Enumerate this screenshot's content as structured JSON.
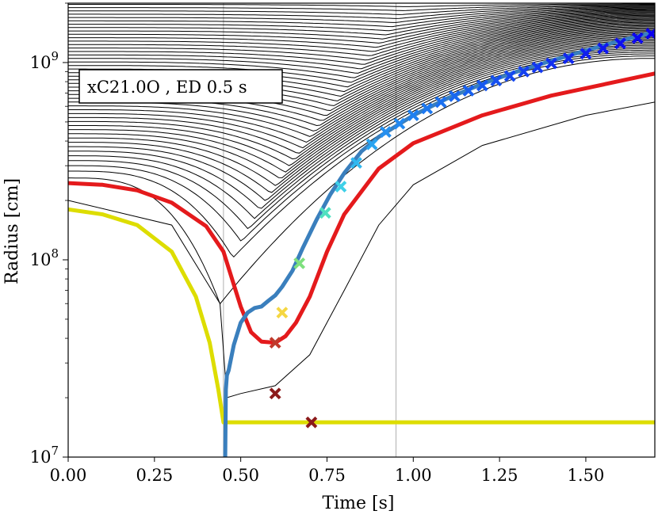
{
  "chart_data": {
    "type": "line",
    "annotation": "xC21.0O , ED 0.5 s",
    "xlabel": "Time [s]",
    "ylabel": "Radius [cm]",
    "xlim": [
      0.0,
      1.7
    ],
    "ylim": [
      10000000,
      2000000000
    ],
    "yscale": "log",
    "x_ticks": [
      0.0,
      0.25,
      0.5,
      0.75,
      1.0,
      1.25,
      1.5
    ],
    "x_tick_labels": [
      "0.00",
      "0.25",
      "0.50",
      "0.75",
      "1.00",
      "1.25",
      "1.50"
    ],
    "y_major_ticks": [
      {
        "value": 10000000,
        "base": "10",
        "exp": "7"
      },
      {
        "value": 100000000,
        "base": "10",
        "exp": "8"
      },
      {
        "value": 1000000000,
        "base": "10",
        "exp": "9"
      }
    ],
    "vlines": [
      0.45,
      0.95
    ],
    "colors": {
      "trajectories": "#000000",
      "yellow": "#dddd00",
      "red": "#e41a1c",
      "blue": "#3a7fbd",
      "vline": "#b0b0b0"
    },
    "series": [
      {
        "name": "inner-yellow",
        "color": "#dddd00",
        "x": [
          0.0,
          0.1,
          0.2,
          0.3,
          0.37,
          0.41,
          0.435,
          0.45,
          0.46,
          1.7
        ],
        "y": [
          180000000,
          170000000,
          150000000,
          110000000,
          65000000,
          38000000,
          22000000,
          15000000,
          15000000,
          15000000
        ]
      },
      {
        "name": "red-shell",
        "color": "#e41a1c",
        "x": [
          0.0,
          0.1,
          0.2,
          0.3,
          0.4,
          0.45,
          0.5,
          0.53,
          0.56,
          0.6,
          0.63,
          0.66,
          0.7,
          0.75,
          0.8,
          0.9,
          1.0,
          1.2,
          1.4,
          1.7
        ],
        "y": [
          245000000,
          240000000,
          225000000,
          195000000,
          148000000,
          110000000,
          58000000,
          43000000,
          38500000,
          38000000,
          41000000,
          48000000,
          65000000,
          110000000,
          170000000,
          290000000,
          390000000,
          540000000,
          680000000,
          880000000
        ]
      },
      {
        "name": "shock-radius",
        "color": "#3a7fbd",
        "x": [
          0.455,
          0.457,
          0.46,
          0.465,
          0.48,
          0.5,
          0.52,
          0.54,
          0.56,
          0.58,
          0.6,
          0.62,
          0.65,
          0.68,
          0.72,
          0.76,
          0.8,
          0.85,
          0.9,
          1.0,
          1.1,
          1.2,
          1.3,
          1.4,
          1.5,
          1.6,
          1.7
        ],
        "y": [
          10000000,
          22000000,
          26000000,
          27500000,
          37000000,
          48000000,
          54000000,
          57000000,
          58000000,
          62000000,
          66000000,
          73000000,
          88000000,
          115000000,
          160000000,
          215000000,
          275000000,
          355000000,
          420000000,
          540000000,
          660000000,
          780000000,
          900000000,
          1020000000,
          1150000000,
          1290000000,
          1430000000
        ]
      }
    ],
    "trajectory_count": 47,
    "markers": [
      {
        "x": 0.705,
        "y": 15000000,
        "color": "#8b1a1a"
      },
      {
        "x": 0.6,
        "y": 21000000,
        "color": "#8b1a1a"
      },
      {
        "x": 0.6,
        "y": 38000000,
        "color": "#c0392b"
      },
      {
        "x": 0.62,
        "y": 54000000,
        "color": "#f5d742"
      },
      {
        "x": 0.67,
        "y": 96000000,
        "color": "#7ee07e"
      },
      {
        "x": 0.745,
        "y": 173000000,
        "color": "#4fe0c0"
      },
      {
        "x": 0.79,
        "y": 235000000,
        "color": "#3ed0e8"
      },
      {
        "x": 0.835,
        "y": 310000000,
        "color": "#30b8f0"
      },
      {
        "x": 0.88,
        "y": 385000000,
        "color": "#2aa4f0"
      },
      {
        "x": 0.92,
        "y": 445000000,
        "color": "#2690f0"
      },
      {
        "x": 0.96,
        "y": 490000000,
        "color": "#2288f0"
      },
      {
        "x": 1.0,
        "y": 540000000,
        "color": "#1f80f0"
      },
      {
        "x": 1.04,
        "y": 585000000,
        "color": "#1d78f0"
      },
      {
        "x": 1.08,
        "y": 630000000,
        "color": "#1b70f0"
      },
      {
        "x": 1.12,
        "y": 675000000,
        "color": "#1a68f0"
      },
      {
        "x": 1.16,
        "y": 720000000,
        "color": "#1860f0"
      },
      {
        "x": 1.2,
        "y": 765000000,
        "color": "#1758f0"
      },
      {
        "x": 1.24,
        "y": 810000000,
        "color": "#1650f0"
      },
      {
        "x": 1.28,
        "y": 855000000,
        "color": "#1548f0"
      },
      {
        "x": 1.32,
        "y": 900000000,
        "color": "#1440f0"
      },
      {
        "x": 1.36,
        "y": 945000000,
        "color": "#1338f0"
      },
      {
        "x": 1.4,
        "y": 990000000,
        "color": "#1230f0"
      },
      {
        "x": 1.45,
        "y": 1050000000,
        "color": "#1128f0"
      },
      {
        "x": 1.5,
        "y": 1110000000,
        "color": "#1020f0"
      },
      {
        "x": 1.55,
        "y": 1180000000,
        "color": "#0f18f0"
      },
      {
        "x": 1.6,
        "y": 1250000000,
        "color": "#0e10f0"
      },
      {
        "x": 1.65,
        "y": 1330000000,
        "color": "#0d08f0"
      },
      {
        "x": 1.69,
        "y": 1400000000,
        "color": "#0c00f0"
      }
    ]
  }
}
